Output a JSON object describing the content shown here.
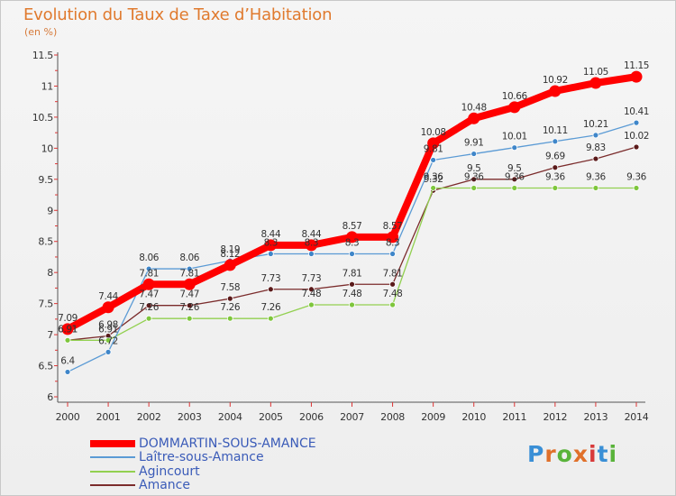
{
  "title": "Evolution du Taux de Taxe d’Habitation",
  "subtitle": "(en %)",
  "logo_text": "Proxiti",
  "chart_data": {
    "type": "line",
    "title": "Evolution du Taux de Taxe d’Habitation",
    "ylabel": "(en %)",
    "xlabel": "",
    "x": [
      2000,
      2001,
      2002,
      2003,
      2004,
      2005,
      2006,
      2007,
      2008,
      2009,
      2010,
      2011,
      2012,
      2013,
      2014
    ],
    "ylim": [
      6,
      11.5
    ],
    "yticks": [
      "6",
      "6.5",
      "7",
      "7.5",
      "8",
      "8.5",
      "9",
      "9.5",
      "10",
      "10.5",
      "11",
      "11.5"
    ],
    "grid": false,
    "legend_position": "bottom-left",
    "series": [
      {
        "name": "DOMMARTIN-SOUS-AMANCE",
        "color": "#ff0000",
        "values": [
          7.09,
          7.44,
          7.81,
          7.81,
          8.12,
          8.44,
          8.44,
          8.57,
          8.57,
          10.08,
          10.48,
          10.66,
          10.92,
          11.05,
          11.15
        ],
        "labels": [
          "7.09",
          "7.44",
          "7.81",
          "7.81",
          "8.12",
          "8.44",
          "8.44",
          "8.57",
          "8.57",
          "10.08",
          "10.48",
          "10.66",
          "10.92",
          "11.05",
          "11.15"
        ]
      },
      {
        "name": "Laître-sous-Amance",
        "color": "#5b9bd5",
        "values": [
          6.4,
          6.72,
          8.06,
          8.06,
          8.19,
          8.3,
          8.3,
          8.3,
          8.3,
          9.81,
          9.91,
          10.01,
          10.11,
          10.21,
          10.41
        ],
        "labels": [
          "6.4",
          "6.72",
          "8.06",
          "8.06",
          "8.19",
          "8.3",
          "8.3",
          "8.3",
          "8.3",
          "9.81",
          "9.91",
          "10.01",
          "10.11",
          "10.21",
          "10.41"
        ]
      },
      {
        "name": "Agincourt",
        "color": "#92d050",
        "values": [
          6.91,
          6.91,
          7.26,
          7.26,
          7.26,
          7.26,
          7.48,
          7.48,
          7.48,
          9.36,
          9.36,
          9.36,
          9.36,
          9.36,
          9.36
        ],
        "labels": [
          "6.91",
          "6.91",
          "7.26",
          "7.26",
          "7.26",
          "7.26",
          "7.48",
          "7.48",
          "7.48",
          "9.36",
          "9.36",
          "9.36",
          "9.36",
          "9.36",
          "9.36"
        ]
      },
      {
        "name": "Amance",
        "color": "#7b2c2c",
        "values": [
          6.91,
          6.98,
          7.47,
          7.47,
          7.58,
          7.73,
          7.73,
          7.81,
          7.81,
          9.32,
          9.5,
          9.5,
          9.69,
          9.83,
          10.02
        ],
        "labels": [
          "6.91",
          "6.98",
          "7.47",
          "7.47",
          "7.58",
          "7.73",
          "7.73",
          "7.81",
          "7.81",
          "9.32",
          "9.5",
          "9.5",
          "9.69",
          "9.83",
          "10.02"
        ]
      }
    ]
  }
}
